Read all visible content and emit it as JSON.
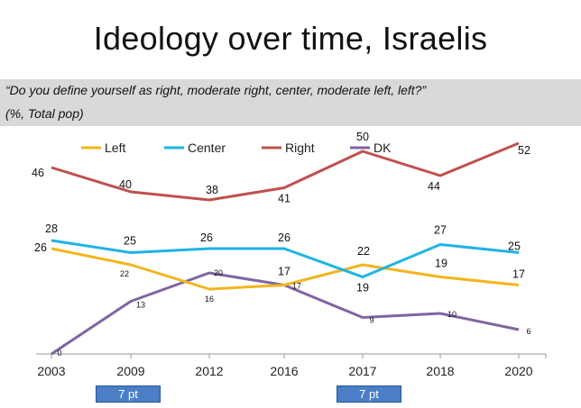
{
  "slide": {
    "title": "Ideology over time, Israelis",
    "question": "“Do you define yourself as right, moderate right, center, moderate left, left?”",
    "base": "(%, Total pop)",
    "badges": [
      "7 pt",
      "7 pt"
    ]
  },
  "chart_data": {
    "type": "line",
    "categories": [
      "2003",
      "2009",
      "2012",
      "2016",
      "2017",
      "2018",
      "2020"
    ],
    "ylim": [
      0,
      60
    ],
    "grid": false,
    "legend": "top",
    "series": [
      {
        "name": "Left",
        "color": "#f2b51b",
        "values": [
          26,
          22,
          16,
          17,
          22,
          19,
          17
        ]
      },
      {
        "name": "Center",
        "color": "#1fb3e6",
        "values": [
          28,
          25,
          26,
          26,
          19,
          27,
          25
        ]
      },
      {
        "name": "Right",
        "color": "#c0504d",
        "values": [
          46,
          40,
          38,
          41,
          50,
          44,
          52
        ]
      },
      {
        "name": "DK",
        "color": "#8064a2",
        "values": [
          0,
          13,
          20,
          17,
          9,
          10,
          6
        ]
      }
    ]
  }
}
